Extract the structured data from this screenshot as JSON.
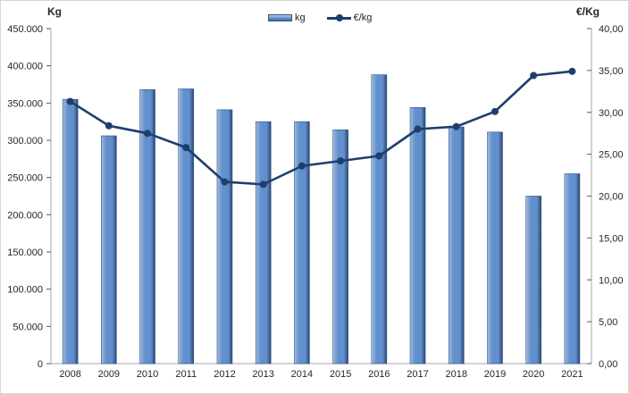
{
  "chart": {
    "left_axis_title": "Kg",
    "right_axis_title": "€/Kg"
  },
  "legend": {
    "items": [
      {
        "label": "kg",
        "type": "bar"
      },
      {
        "label": "€/kg",
        "type": "line"
      }
    ],
    "position": "top-center"
  },
  "chart_data": {
    "type": "combo-bar-line",
    "categories": [
      "2008",
      "2009",
      "2010",
      "2011",
      "2012",
      "2013",
      "2014",
      "2015",
      "2016",
      "2017",
      "2018",
      "2019",
      "2020",
      "2021"
    ],
    "series": [
      {
        "name": "kg",
        "type": "bar",
        "axis": "left",
        "values": [
          355000,
          306000,
          368000,
          369000,
          341000,
          325000,
          325000,
          314000,
          388000,
          344000,
          318000,
          311000,
          225000,
          255000
        ]
      },
      {
        "name": "€/kg",
        "type": "line",
        "axis": "right",
        "values": [
          31.3,
          28.4,
          27.5,
          25.8,
          21.7,
          21.4,
          23.6,
          24.2,
          24.8,
          28.0,
          28.3,
          30.1,
          34.4,
          34.9
        ]
      }
    ],
    "left_axis": {
      "title": "Kg",
      "min": 0,
      "max": 450000,
      "step": 50000,
      "tick_labels": [
        "450.000",
        "400.000",
        "350.000",
        "300.000",
        "250.000",
        "200.000",
        "150.000",
        "100.000",
        "50.000",
        "0"
      ]
    },
    "right_axis": {
      "title": "€/Kg",
      "min": 0,
      "max": 40,
      "step": 5,
      "tick_labels": [
        "40,00",
        "35,00",
        "30,00",
        "25,00",
        "20,00",
        "15,00",
        "10,00",
        "5,00",
        "0,00"
      ]
    },
    "legend_position": "top-center",
    "grid": false
  },
  "colors": {
    "bar_fill": "#6290cc",
    "bar_fill_light": "#b9cfe8",
    "bar_fill_mid": "#89acd9",
    "bar_fill_dark": "#25456f",
    "bar_border": "#2f5184",
    "line": "#1f3e6d",
    "axis_line": "#a6a6a6",
    "tick_mark": "#595959",
    "tick_text": "#262626"
  }
}
